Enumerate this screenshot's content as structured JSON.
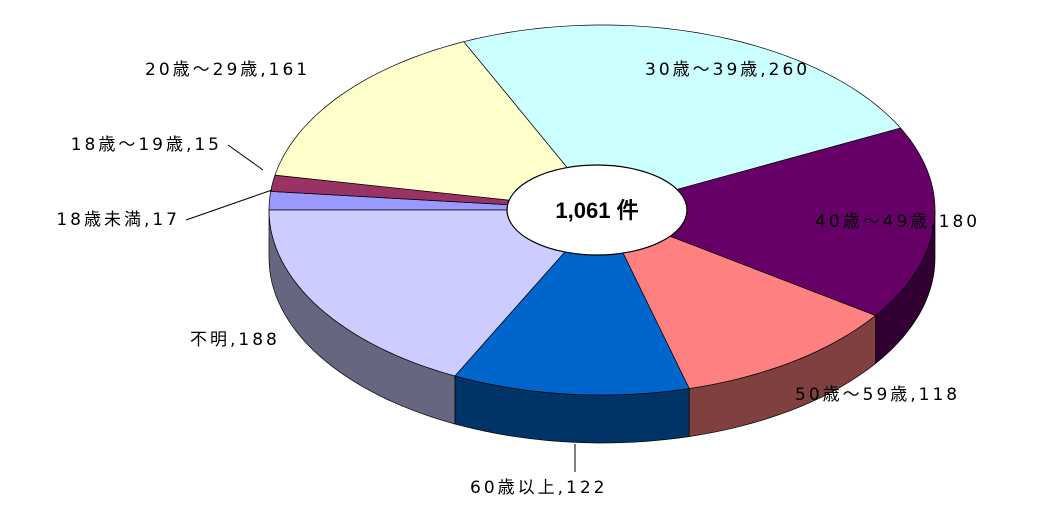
{
  "chart_data": {
    "type": "pie",
    "center_label": "1,061 件",
    "categories": [
      "18歳未満,17",
      "18歳～19歳,15",
      "20歳～29歳,161",
      "30歳～39歳,260",
      "40歳～49歳,180",
      "50歳～59歳,118",
      "60歳以上,122",
      "不明,188"
    ],
    "values": [
      17,
      15,
      161,
      260,
      180,
      118,
      122,
      188
    ],
    "colors": [
      "#9999ff",
      "#993366",
      "#ffffcc",
      "#ccffff",
      "#660066",
      "#ff8080",
      "#0066cc",
      "#ccccff"
    ]
  }
}
